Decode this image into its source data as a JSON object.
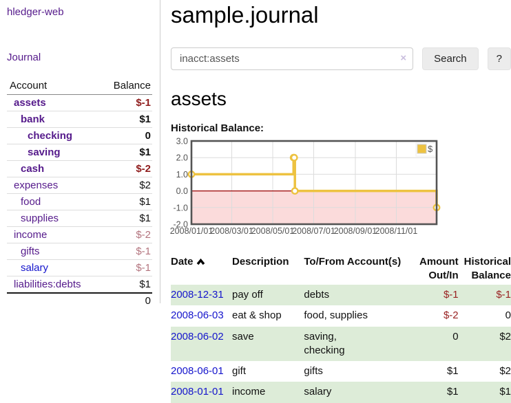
{
  "brand": "hledger-web",
  "nav": {
    "journal": "Journal"
  },
  "sidebar_table": {
    "headers": {
      "account": "Account",
      "balance": "Balance"
    },
    "accounts": [
      {
        "name": "assets",
        "depth": 1,
        "active": true,
        "blue": false,
        "balance": "$-1",
        "tone": "neg-strong"
      },
      {
        "name": "bank",
        "depth": 2,
        "active": true,
        "blue": false,
        "balance": "$1",
        "tone": ""
      },
      {
        "name": "checking",
        "depth": 3,
        "active": true,
        "blue": false,
        "balance": "0",
        "tone": ""
      },
      {
        "name": "saving",
        "depth": 3,
        "active": true,
        "blue": false,
        "balance": "$1",
        "tone": ""
      },
      {
        "name": "cash",
        "depth": 2,
        "active": true,
        "blue": false,
        "balance": "$-2",
        "tone": "neg-strong"
      },
      {
        "name": "expenses",
        "depth": 1,
        "active": false,
        "blue": false,
        "balance": "$2",
        "tone": ""
      },
      {
        "name": "food",
        "depth": 2,
        "active": false,
        "blue": false,
        "balance": "$1",
        "tone": ""
      },
      {
        "name": "supplies",
        "depth": 2,
        "active": false,
        "blue": false,
        "balance": "$1",
        "tone": ""
      },
      {
        "name": "income",
        "depth": 1,
        "active": false,
        "blue": false,
        "balance": "$-2",
        "tone": "neg-soft"
      },
      {
        "name": "gifts",
        "depth": 2,
        "active": false,
        "blue": false,
        "balance": "$-1",
        "tone": "neg-soft"
      },
      {
        "name": "salary",
        "depth": 2,
        "active": false,
        "blue": true,
        "balance": "$-1",
        "tone": "neg-soft"
      },
      {
        "name": "liabilities:debts",
        "depth": 1,
        "active": false,
        "blue": false,
        "balance": "$1",
        "tone": ""
      }
    ],
    "total": "0"
  },
  "header": {
    "title": "sample.journal"
  },
  "search": {
    "query": "inacct:assets",
    "clear_icon": "×",
    "search_label": "Search",
    "help_label": "?"
  },
  "account_page": {
    "heading": "assets",
    "chart_label": "Historical Balance:"
  },
  "chart_data": {
    "type": "line",
    "title": "Historical Balance",
    "step": true,
    "ylim": [
      -2,
      3
    ],
    "x_range_days": 365,
    "y_ticks": [
      {
        "label": "3.0",
        "value": 3
      },
      {
        "label": "2.0",
        "value": 2
      },
      {
        "label": "1.0",
        "value": 1
      },
      {
        "label": "0.0",
        "value": 0
      },
      {
        "label": "-1.0",
        "value": -1
      },
      {
        "label": "-2.0",
        "value": -2
      }
    ],
    "x_ticks": [
      {
        "label": "2008/01/01",
        "day": 0
      },
      {
        "label": "2008/03/01",
        "day": 60
      },
      {
        "label": "2008/05/01",
        "day": 121
      },
      {
        "label": "2008/07/01",
        "day": 182
      },
      {
        "label": "2008/09/01",
        "day": 244
      },
      {
        "label": "2008/11/01",
        "day": 305
      }
    ],
    "series": [
      {
        "name": "$",
        "color": "#edc240",
        "points": [
          {
            "date": "2008-01-01",
            "day": 0,
            "value": 1
          },
          {
            "date": "2008-06-01",
            "day": 152,
            "value": 2
          },
          {
            "date": "2008-06-02",
            "day": 153,
            "value": 2
          },
          {
            "date": "2008-06-03",
            "day": 154,
            "value": 0
          },
          {
            "date": "2008-12-31",
            "day": 365,
            "value": -1
          }
        ]
      }
    ],
    "legend": {
      "label": "$",
      "position": "top-right"
    },
    "colors": {
      "negative_fill": "#fbdbdb",
      "zero_line": "#990000",
      "grid": "#dcdcdc",
      "border": "#545454",
      "tick_text": "#545454"
    }
  },
  "register": {
    "headers": {
      "date": "Date",
      "description": "Description",
      "to_from": "To/From Account(s)",
      "amount": "Amount Out/In",
      "balance": "Historical Balance"
    },
    "rows": [
      {
        "date": "2008-12-31",
        "description": "pay off",
        "to_from": "debts",
        "amount": "$-1",
        "amount_neg": true,
        "balance": "$-1",
        "balance_neg": true
      },
      {
        "date": "2008-06-03",
        "description": "eat & shop",
        "to_from": "food, supplies",
        "amount": "$-2",
        "amount_neg": true,
        "balance": "0",
        "balance_neg": false
      },
      {
        "date": "2008-06-02",
        "description": "save",
        "to_from": "saving,\nchecking",
        "amount": "0",
        "amount_neg": false,
        "balance": "$2",
        "balance_neg": false
      },
      {
        "date": "2008-06-01",
        "description": "gift",
        "to_from": "gifts",
        "amount": "$1",
        "amount_neg": false,
        "balance": "$2",
        "balance_neg": false
      },
      {
        "date": "2008-01-01",
        "description": "income",
        "to_from": "salary",
        "amount": "$1",
        "amount_neg": false,
        "balance": "$1",
        "balance_neg": false
      }
    ]
  }
}
